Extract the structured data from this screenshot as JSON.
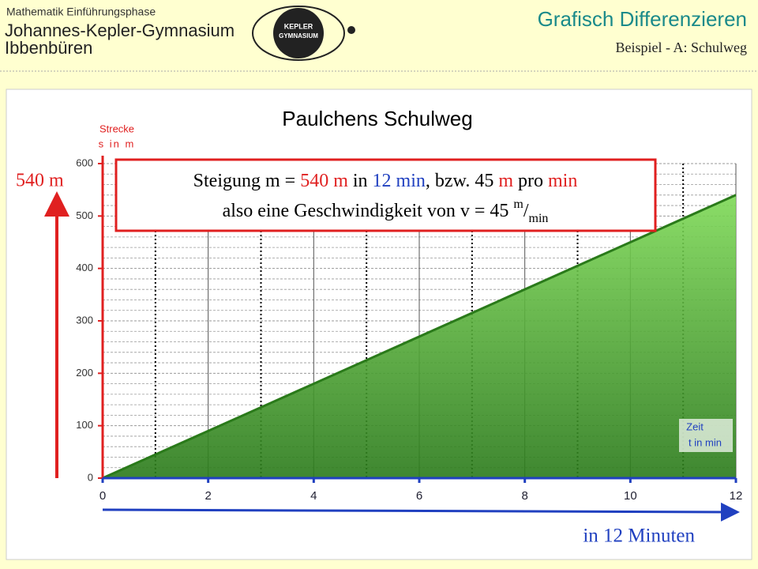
{
  "header": {
    "subject": "Mathematik Einführungsphase",
    "school": "Johannes-Kepler-Gymnasium",
    "city": "Ibbenbüren",
    "logo": [
      "KEPLER",
      "GYMNASIUM"
    ],
    "title": "Grafisch Differenzieren",
    "subtitle": "Beispiel - A: Schulweg"
  },
  "chart_data": {
    "type": "area",
    "title": "Paulchens Schulweg",
    "y_label": [
      "Strecke",
      "s in m"
    ],
    "x_label": [
      "Zeit",
      "t in min"
    ],
    "x": [
      0,
      12
    ],
    "series": [
      {
        "values": [
          0,
          540
        ],
        "color": "#2a7a1a",
        "fill": "#7ed957"
      }
    ],
    "xlim": [
      0,
      12
    ],
    "xticks": [
      0,
      2,
      4,
      6,
      8,
      10,
      12
    ],
    "x_dotted_grid": [
      1,
      3,
      5,
      7,
      9,
      11
    ],
    "ylim": [
      0,
      600
    ],
    "yticks": [
      0,
      100,
      200,
      300,
      400,
      500,
      600
    ],
    "minor_grid_divisions": 5,
    "grid": true,
    "y_axis_color": "#e02020",
    "x_axis_color": "#2040c0",
    "annotations": {
      "height": "540 m",
      "duration": "in 12 Minuten",
      "box_line1": [
        {
          "text": "Steigung  m = ",
          "color": "#000000"
        },
        {
          "text": "540 m",
          "color": "#e02020"
        },
        {
          "text": " in ",
          "color": "#000000"
        },
        {
          "text": "12 min",
          "color": "#2040c0"
        },
        {
          "text": ", bzw. 45 ",
          "color": "#000000"
        },
        {
          "text": "m",
          "color": "#e02020"
        },
        {
          "text": " pro ",
          "color": "#000000"
        },
        {
          "text": "min",
          "color": "#e02020"
        }
      ],
      "box_line2": [
        {
          "text": "also  eine Geschwindigkeit  von  v = 45 ",
          "shift": "none"
        },
        {
          "text": "m",
          "shift": "super"
        },
        {
          "text": "/",
          "shift": "none"
        },
        {
          "text": "min",
          "shift": "sub"
        }
      ]
    }
  }
}
